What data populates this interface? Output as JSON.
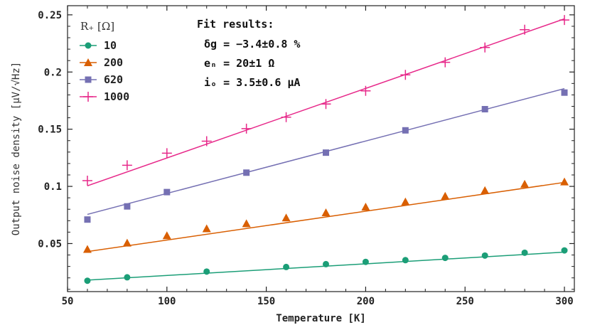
{
  "chart_data": {
    "type": "scatter",
    "title": "",
    "xlabel": "Temperature [K]",
    "ylabel": "Output noise density [μV/√Hz]",
    "xlim": [
      50,
      305
    ],
    "ylim": [
      0.008,
      0.258
    ],
    "x_ticks": [
      50,
      100,
      150,
      200,
      250,
      300
    ],
    "x_tick_labels": [
      "50",
      "100",
      "150",
      "200",
      "250",
      "300"
    ],
    "y_ticks": [
      0.05,
      0.1,
      0.15,
      0.2,
      0.25
    ],
    "y_tick_labels": [
      "0.05",
      "0.1",
      "0.15",
      "0.2",
      "0.25"
    ],
    "legend": {
      "title": "R₊ [Ω]",
      "placement": "top-left"
    },
    "fit_results": {
      "title": "Fit results:",
      "lines": [
        "δg = −3.4±0.8 %",
        "eₙ = 20±1 Ω",
        "iₒ = 3.5±0.6 μA"
      ]
    },
    "series": [
      {
        "name": "10",
        "color": "#1b9e77",
        "marker": "circle",
        "x": [
          60,
          80,
          120,
          160,
          180,
          200,
          220,
          240,
          260,
          280,
          300
        ],
        "values": [
          0.0175,
          0.0205,
          0.0255,
          0.0295,
          0.032,
          0.034,
          0.0355,
          0.0375,
          0.0395,
          0.042,
          0.044
        ],
        "fit": [
          [
            60,
            0.018
          ],
          [
            300,
            0.0425
          ]
        ]
      },
      {
        "name": "200",
        "color": "#d95f02",
        "marker": "triangle",
        "x": [
          60,
          80,
          100,
          120,
          140,
          160,
          180,
          200,
          220,
          240,
          260,
          280,
          300
        ],
        "values": [
          0.045,
          0.0505,
          0.057,
          0.063,
          0.0675,
          0.0725,
          0.077,
          0.082,
          0.0865,
          0.0915,
          0.0965,
          0.102,
          0.104
        ],
        "fit": [
          [
            60,
            0.043
          ],
          [
            300,
            0.1035
          ]
        ]
      },
      {
        "name": "620",
        "color": "#7570b3",
        "marker": "square",
        "x": [
          60,
          80,
          100,
          140,
          180,
          220,
          260,
          300
        ],
        "values": [
          0.071,
          0.0825,
          0.095,
          0.112,
          0.1295,
          0.149,
          0.1675,
          0.182
        ],
        "fit": [
          [
            60,
            0.0755
          ],
          [
            300,
            0.1855
          ]
        ]
      },
      {
        "name": "1000",
        "color": "#e7298a",
        "marker": "plus",
        "x": [
          60,
          80,
          100,
          120,
          140,
          160,
          180,
          200,
          220,
          240,
          260,
          280,
          300
        ],
        "values": [
          0.105,
          0.1185,
          0.129,
          0.1395,
          0.1505,
          0.1605,
          0.172,
          0.1835,
          0.1975,
          0.2085,
          0.2215,
          0.237,
          0.2455
        ],
        "fit": [
          [
            60,
            0.1005
          ],
          [
            300,
            0.2465
          ]
        ]
      }
    ]
  }
}
